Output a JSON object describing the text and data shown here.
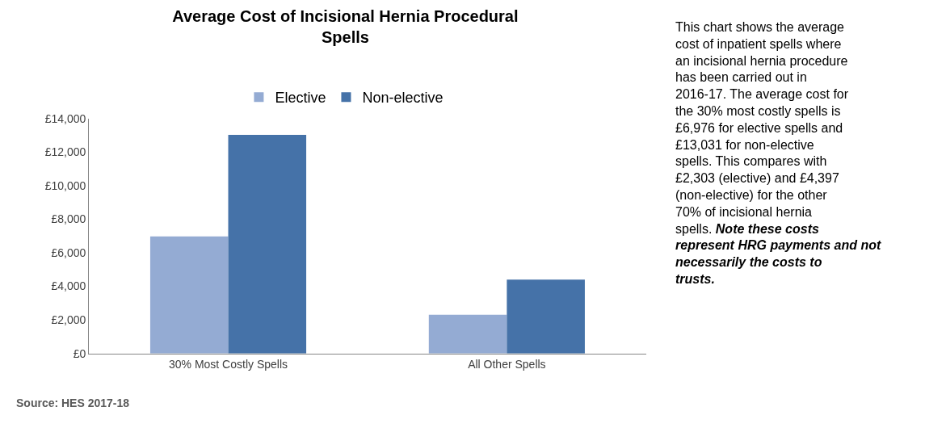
{
  "chart_data": {
    "type": "bar",
    "title": "Average Cost of Incisional Hernia Procedural Spells",
    "categories": [
      "30% Most Costly Spells",
      "All Other Spells"
    ],
    "series": [
      {
        "name": "Elective",
        "color": "#94abd3",
        "values": [
          6976,
          2303
        ]
      },
      {
        "name": "Non-elective",
        "color": "#4572a8",
        "values": [
          13031,
          4397
        ]
      }
    ],
    "ylim": [
      0,
      14000
    ],
    "yticks": [
      {
        "value": 0,
        "label": "£0"
      },
      {
        "value": 2000,
        "label": "£2,000"
      },
      {
        "value": 4000,
        "label": "£4,000"
      },
      {
        "value": 6000,
        "label": "£6,000"
      },
      {
        "value": 8000,
        "label": "£8,000"
      },
      {
        "value": 10000,
        "label": "£10,000"
      },
      {
        "value": 12000,
        "label": "£12,000"
      },
      {
        "value": 14000,
        "label": "£14,000"
      }
    ],
    "legend": "top",
    "annotations": [
      "Source: HES 2017-18",
      "This chart shows the average cost of inpatient spells where an incisional hernia procedure has been carried out in 2016-17. The average cost for the 30% most costly spells is £6,976 for elective spells and £13,031 for non-elective spells. This compares with £2,303 (elective) and £4,397 (non-elective) for the other 70% of incisional hernia spells.",
      "Note these costs represent HRG payments and not necessarily the costs to trusts."
    ]
  }
}
